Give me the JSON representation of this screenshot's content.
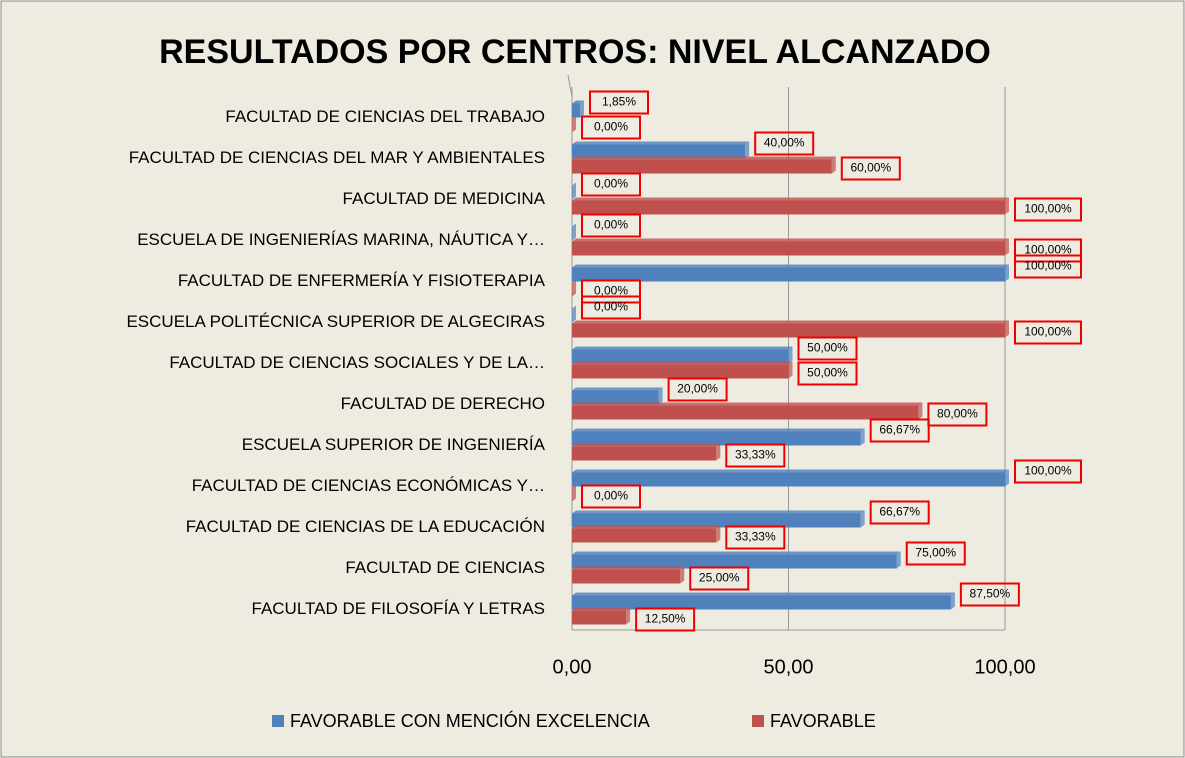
{
  "chart_data": {
    "type": "bar",
    "orientation": "horizontal",
    "title": "RESULTADOS POR CENTROS: NIVEL ALCANZADO",
    "categories": [
      "FACULTAD DE CIENCIAS DEL TRABAJO",
      "FACULTAD DE CIENCIAS DEL MAR Y AMBIENTALES",
      "FACULTAD DE MEDICINA",
      "ESCUELA DE INGENIERÍAS MARINA, NÁUTICA Y…",
      "FACULTAD DE ENFERMERÍA Y FISIOTERAPIA",
      "ESCUELA POLITÉCNICA SUPERIOR DE ALGECIRAS",
      "FACULTAD DE CIENCIAS SOCIALES Y DE LA…",
      "FACULTAD DE DERECHO",
      "ESCUELA SUPERIOR DE INGENIERÍA",
      "FACULTAD DE CIENCIAS ECONÓMICAS Y…",
      "FACULTAD DE CIENCIAS DE LA EDUCACIÓN",
      "FACULTAD DE CIENCIAS",
      "FACULTAD DE FILOSOFÍA Y LETRAS"
    ],
    "series": [
      {
        "name": "FAVORABLE CON MENCIÓN EXCELENCIA",
        "color": "#4f81bd",
        "values": [
          1.85,
          40,
          0,
          0,
          100,
          0,
          50,
          20,
          66.67,
          100,
          66.67,
          75,
          87.5
        ],
        "value_labels": [
          "1,85%",
          "40,00%",
          "0,00%",
          "0,00%",
          "100,00%",
          "0,00%",
          "50,00%",
          "20,00%",
          "66,67%",
          "100,00%",
          "66,67%",
          "75,00%",
          "87,50%"
        ]
      },
      {
        "name": "FAVORABLE",
        "color": "#c0504d",
        "values": [
          0,
          60,
          100,
          100,
          0,
          100,
          50,
          80,
          33.33,
          0,
          33.33,
          25,
          12.5
        ],
        "value_labels": [
          "0,00%",
          "60,00%",
          "100,00%",
          "100,00%",
          "0,00%",
          "100,00%",
          "50,00%",
          "80,00%",
          "33,33%",
          "0,00%",
          "33,33%",
          "25,00%",
          "12,50%"
        ]
      }
    ],
    "xlim": [
      0,
      100
    ],
    "xticks": [
      {
        "value": 0,
        "label": "0,00"
      },
      {
        "value": 50,
        "label": "50,00"
      },
      {
        "value": 100,
        "label": "100,00"
      }
    ],
    "grid": true,
    "legend": "bottom"
  }
}
